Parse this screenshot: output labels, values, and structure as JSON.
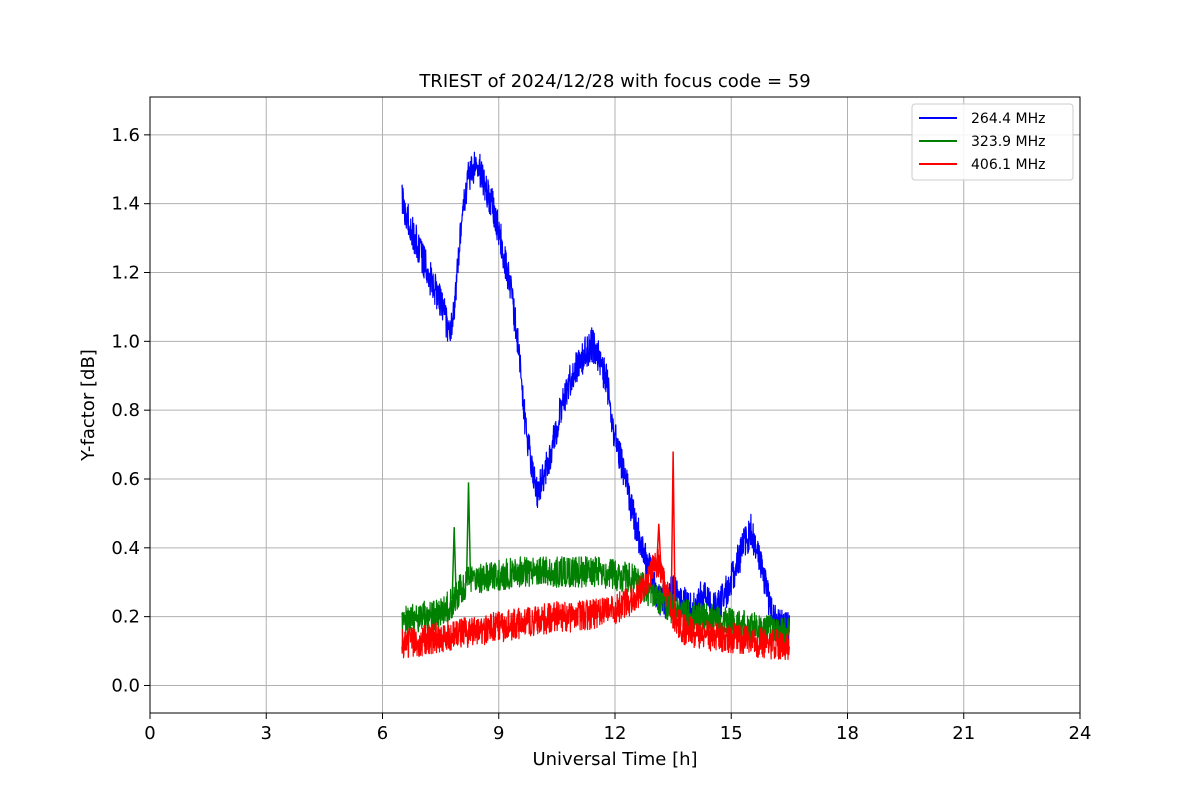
{
  "chart_data": {
    "type": "line",
    "title": "TRIEST of 2024/12/28 with focus code = 59",
    "xlabel": "Universal Time [h]",
    "ylabel": "Y-factor [dB]",
    "xlim": [
      0,
      24
    ],
    "ylim": [
      -0.08,
      1.71
    ],
    "xticks": [
      0,
      3,
      6,
      9,
      12,
      15,
      18,
      21,
      24
    ],
    "yticks": [
      0.0,
      0.2,
      0.4,
      0.6,
      0.8,
      1.0,
      1.2,
      1.4,
      1.6
    ],
    "ytick_labels": [
      "0.0",
      "0.2",
      "0.4",
      "0.6",
      "0.8",
      "1.0",
      "1.2",
      "1.4",
      "1.6"
    ],
    "grid": true,
    "legend_position": "top-right",
    "series": [
      {
        "name": "264.4 MHz",
        "color": "#0000ff",
        "x": [
          6.5,
          6.6,
          6.8,
          7.0,
          7.2,
          7.4,
          7.6,
          7.7,
          7.8,
          7.9,
          8.0,
          8.2,
          8.4,
          8.5,
          8.7,
          8.9,
          9.1,
          9.3,
          9.5,
          9.6,
          9.7,
          9.9,
          10.0,
          10.2,
          10.4,
          10.6,
          10.8,
          11.0,
          11.2,
          11.4,
          11.6,
          11.8,
          11.9,
          12.1,
          12.3,
          12.5,
          12.7,
          12.9,
          13.0,
          13.1,
          13.3,
          13.5,
          13.7,
          13.9,
          14.1,
          14.3,
          14.5,
          14.7,
          14.9,
          15.1,
          15.3,
          15.5,
          15.7,
          15.9,
          16.1,
          16.3,
          16.5
        ],
        "y": [
          1.42,
          1.38,
          1.31,
          1.25,
          1.19,
          1.14,
          1.08,
          1.03,
          1.05,
          1.15,
          1.3,
          1.47,
          1.52,
          1.5,
          1.44,
          1.37,
          1.27,
          1.16,
          1.0,
          0.86,
          0.74,
          0.62,
          0.56,
          0.63,
          0.7,
          0.8,
          0.88,
          0.93,
          0.96,
          0.99,
          0.95,
          0.88,
          0.78,
          0.68,
          0.58,
          0.48,
          0.4,
          0.34,
          0.3,
          0.26,
          0.24,
          0.28,
          0.25,
          0.22,
          0.24,
          0.27,
          0.22,
          0.23,
          0.28,
          0.34,
          0.4,
          0.45,
          0.38,
          0.28,
          0.2,
          0.17,
          0.16
        ],
        "noise": 0.05
      },
      {
        "name": "323.9 MHz",
        "color": "#008000",
        "x": [
          6.5,
          7.0,
          7.5,
          7.8,
          8.0,
          8.2,
          8.5,
          9.0,
          9.5,
          10.0,
          10.5,
          11.0,
          11.5,
          12.0,
          12.5,
          12.8,
          13.0,
          13.3,
          13.5,
          14.0,
          14.5,
          15.0,
          15.5,
          16.0,
          16.5
        ],
        "y": [
          0.19,
          0.2,
          0.21,
          0.24,
          0.28,
          0.3,
          0.31,
          0.32,
          0.33,
          0.33,
          0.33,
          0.33,
          0.33,
          0.32,
          0.31,
          0.28,
          0.26,
          0.24,
          0.22,
          0.2,
          0.19,
          0.18,
          0.17,
          0.16,
          0.15
        ],
        "noise": 0.045
      },
      {
        "name": "406.1 MHz",
        "color": "#ff0000",
        "x": [
          6.5,
          7.0,
          7.5,
          8.0,
          8.5,
          9.0,
          9.5,
          10.0,
          10.5,
          11.0,
          11.5,
          12.0,
          12.3,
          12.6,
          12.9,
          13.1,
          13.3,
          13.5,
          13.8,
          14.2,
          14.6,
          15.0,
          15.5,
          16.0,
          16.5
        ],
        "y": [
          0.12,
          0.13,
          0.14,
          0.15,
          0.16,
          0.17,
          0.18,
          0.19,
          0.2,
          0.2,
          0.21,
          0.22,
          0.24,
          0.27,
          0.32,
          0.36,
          0.28,
          0.2,
          0.16,
          0.15,
          0.14,
          0.14,
          0.13,
          0.12,
          0.12
        ],
        "noise": 0.045
      }
    ],
    "annotations": [
      {
        "series": "406.1 MHz",
        "x": 13.5,
        "y": 0.68
      },
      {
        "series": "406.1 MHz",
        "x": 13.13,
        "y": 0.47
      },
      {
        "series": "323.9 MHz",
        "x": 8.22,
        "y": 0.59
      },
      {
        "series": "323.9 MHz",
        "x": 7.85,
        "y": 0.46
      }
    ]
  }
}
